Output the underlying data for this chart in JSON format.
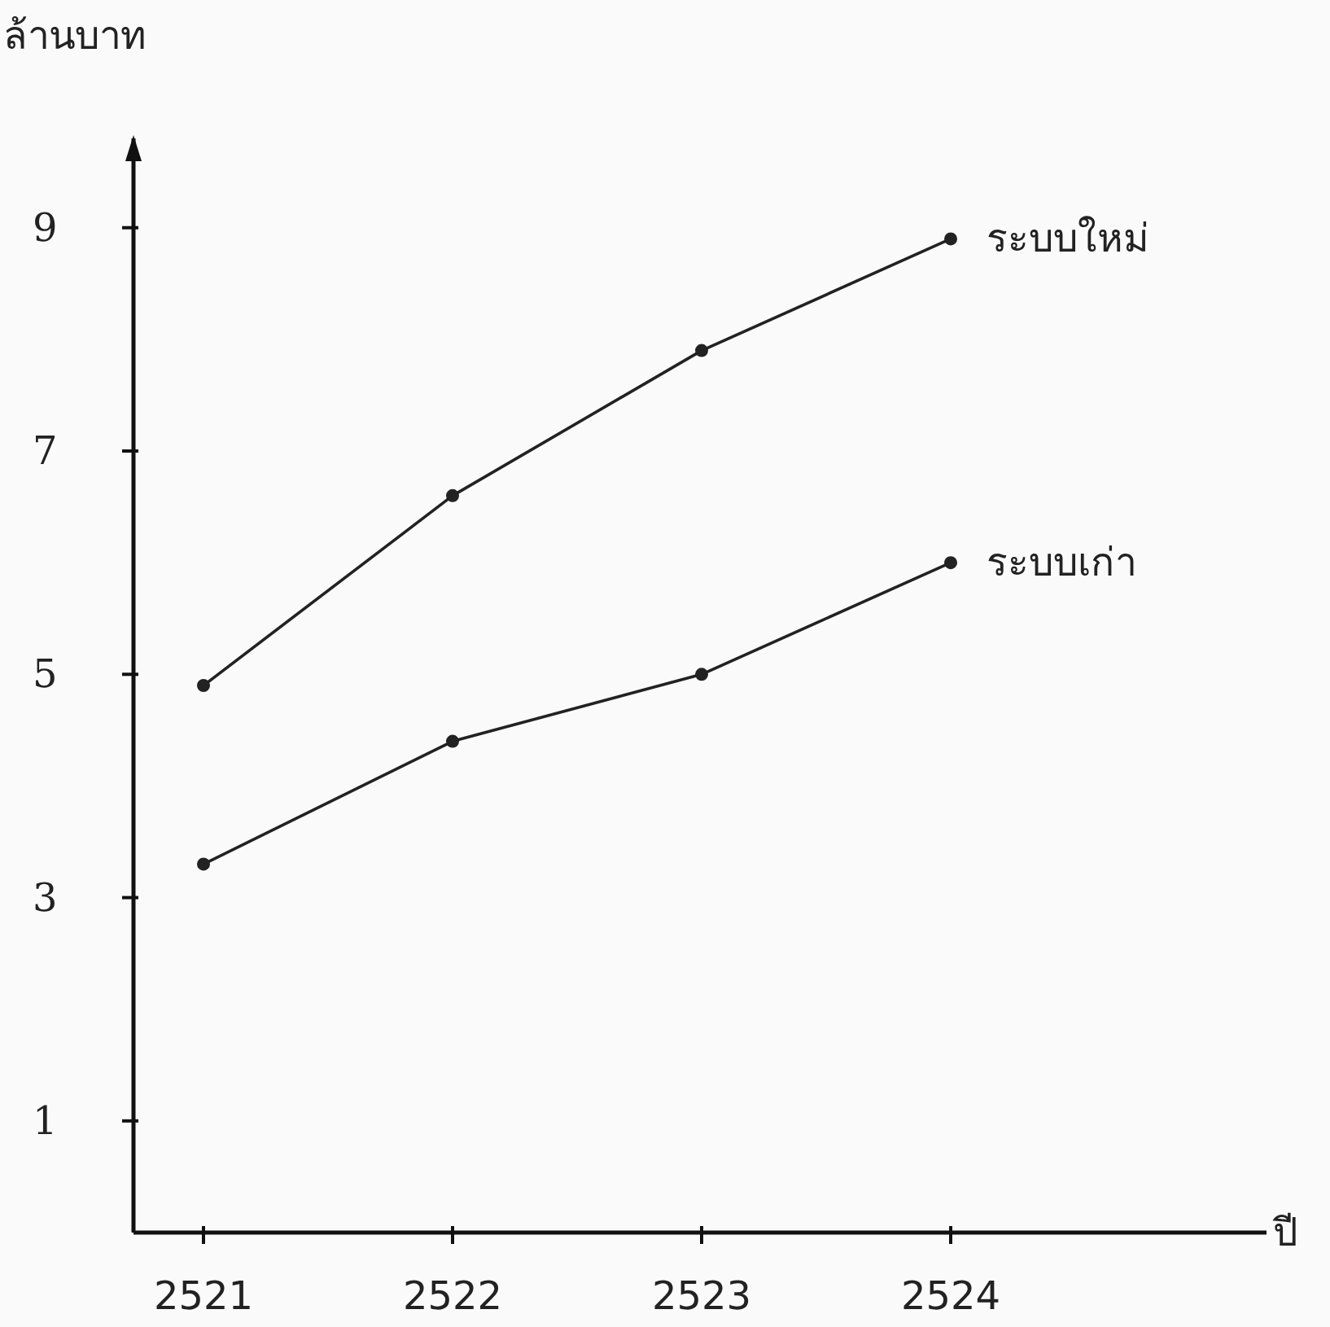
{
  "chart_data": {
    "type": "line",
    "xlabel": "ปี",
    "ylabel": "ล้านบาท",
    "categories": [
      "2521",
      "2522",
      "2523",
      "2524"
    ],
    "series": [
      {
        "name": "ระบบใหม่",
        "color": "#222222",
        "values": [
          4.9,
          6.6,
          7.9,
          8.9
        ]
      },
      {
        "name": "ระบบเก่า",
        "color": "#222222",
        "values": [
          3.3,
          4.4,
          5.0,
          6.0
        ]
      }
    ],
    "ylim": [
      0,
      9.8
    ],
    "yticks": [
      1,
      3,
      5,
      7,
      9
    ],
    "marker": "circle",
    "line_style": "solid",
    "grid": false
  }
}
